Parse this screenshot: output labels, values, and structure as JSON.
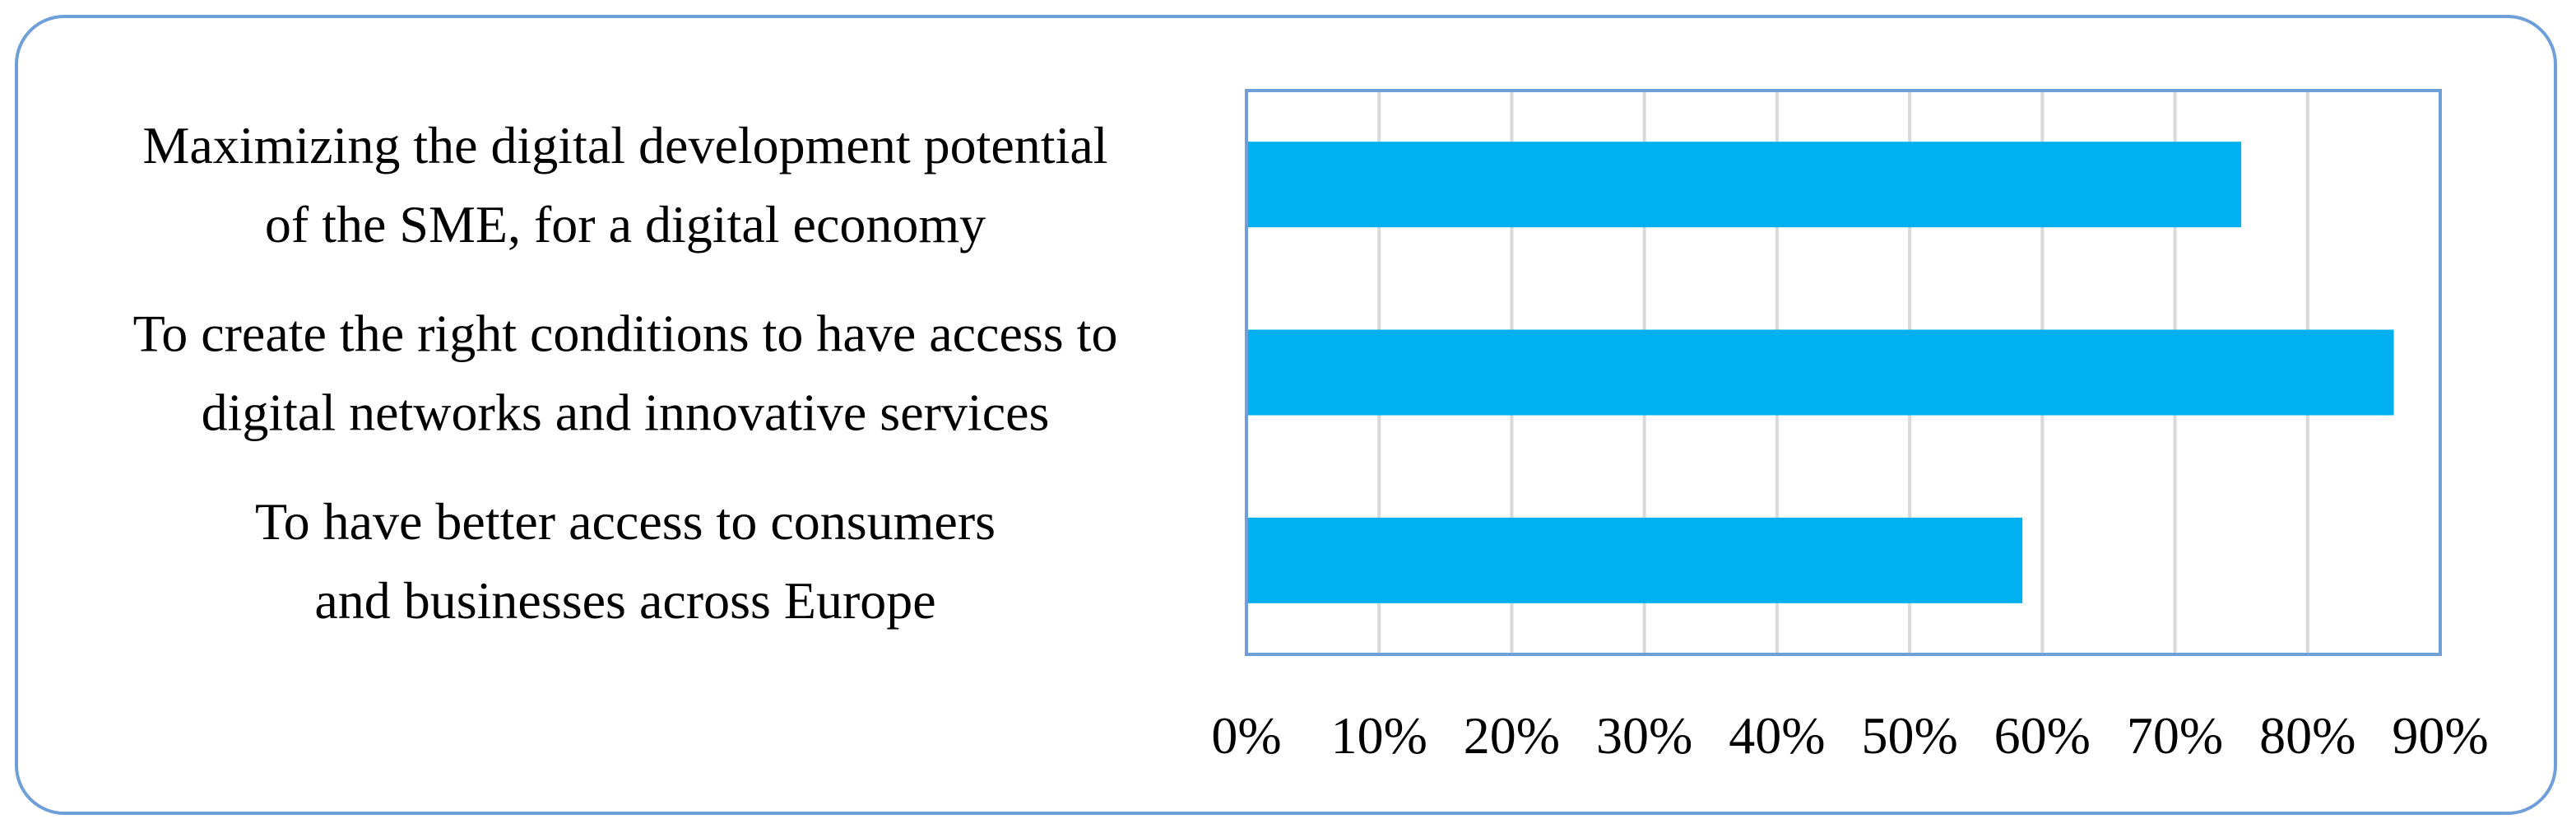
{
  "chart_data": {
    "type": "bar",
    "orientation": "horizontal",
    "title": "",
    "xlabel": "",
    "ylabel": "",
    "categories": [
      [
        "Maximizing the digital development potential",
        "of the SME, for a digital economy"
      ],
      [
        "To create the right conditions to have access to",
        "digital networks and innovative services"
      ],
      [
        "To have better access to consumers",
        "and businesses across Europe"
      ]
    ],
    "values": [
      0.75,
      0.865,
      0.585
    ],
    "xlim": [
      0,
      0.9
    ],
    "xticks": [
      0,
      0.1,
      0.2,
      0.3,
      0.4,
      0.5,
      0.6,
      0.7,
      0.8,
      0.9
    ],
    "xtick_labels": [
      "0%",
      "10%",
      "20%",
      "30%",
      "40%",
      "50%",
      "60%",
      "70%",
      "80%",
      "90%"
    ],
    "grid": true,
    "legend": "none",
    "bar_color": "#00b0f0"
  },
  "colors": {
    "frame": "#6f9fd8",
    "plot_border": "#6f9fd8",
    "grid": "#d9d9d9",
    "bar": "#00b0f0"
  }
}
